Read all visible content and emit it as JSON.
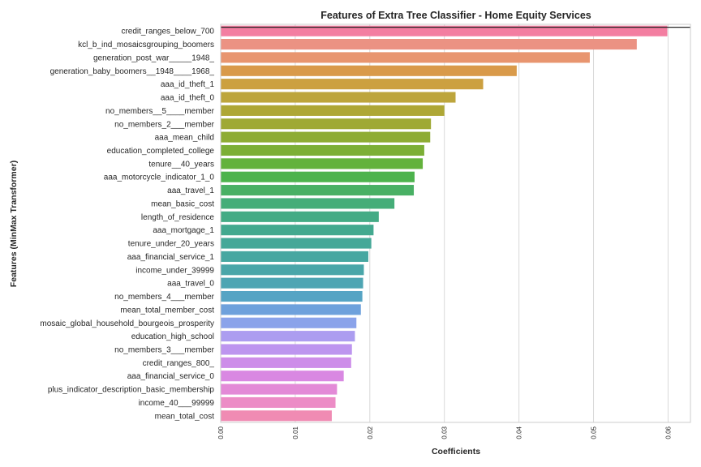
{
  "chart_data": {
    "type": "bar",
    "orientation": "horizontal",
    "title": "Features of Extra Tree Classifier - Home Equity Services",
    "xlabel": "Coefficients",
    "ylabel": "Features (MinMax Transformer)",
    "xlim": [
      0,
      0.063
    ],
    "xticks": [
      "0.00",
      "0.01",
      "0.02",
      "0.03",
      "0.04",
      "0.05",
      "0.06"
    ],
    "grid": "vertical",
    "categories": [
      "credit_ranges_below_700",
      "kcl_b_ind_mosaicsgrouping_boomers",
      "generation_post_war_____1948_",
      "generation_baby_boomers__1948____1968_",
      "aaa_id_theft_1",
      "aaa_id_theft_0",
      "no_members__5____member",
      "no_members_2___member",
      "aaa_mean_child",
      "education_completed_college",
      "tenure__40_years",
      "aaa_motorcycle_indicator_1_0",
      "aaa_travel_1",
      "mean_basic_cost",
      "length_of_residence",
      "aaa_mortgage_1",
      "tenure_under_20_years",
      "aaa_financial_service_1",
      "income_under_39999",
      "aaa_travel_0",
      "no_members_4___member",
      "mean_total_member_cost",
      "mosaic_global_household_bourgeois_prosperity",
      "education_high_school",
      "no_members_3___member",
      "credit_ranges_800_",
      "aaa_financial_service_0",
      "plus_indicator_description_basic_membership",
      "income_40___99999",
      "mean_total_cost"
    ],
    "values": [
      0.0599,
      0.0558,
      0.0495,
      0.0397,
      0.0352,
      0.0315,
      0.03,
      0.0282,
      0.0281,
      0.0273,
      0.0271,
      0.026,
      0.0259,
      0.0233,
      0.0212,
      0.0205,
      0.0202,
      0.0198,
      0.0192,
      0.0191,
      0.019,
      0.0188,
      0.0182,
      0.018,
      0.0176,
      0.0175,
      0.0165,
      0.0156,
      0.0154,
      0.0149
    ],
    "colors": [
      "#f37ea1",
      "#eb9283",
      "#e8956f",
      "#d99a4a",
      "#cca040",
      "#bda53c",
      "#aea736",
      "#9fa934",
      "#8eac34",
      "#7caf36",
      "#63b23c",
      "#4db34d",
      "#49b064",
      "#45ad78",
      "#44ab85",
      "#43a98f",
      "#45a898",
      "#47a7a1",
      "#4aa6a9",
      "#4ea5b3",
      "#56a4c4",
      "#6ea1dc",
      "#8aa3ea",
      "#ac9df0",
      "#bd95ef",
      "#cd8de9",
      "#d988e2",
      "#e38ad7",
      "#ec8cc6",
      "#f08bb3"
    ],
    "reference_line": {
      "value": 0.0599,
      "color": "#262626"
    }
  }
}
